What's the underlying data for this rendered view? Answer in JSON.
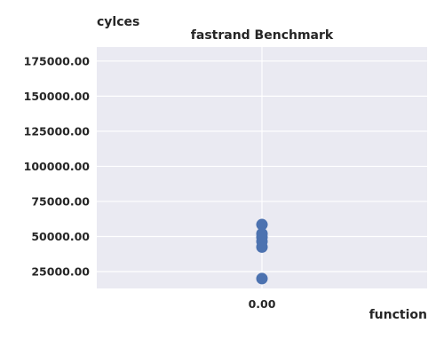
{
  "chart_data": {
    "type": "scatter",
    "title": "fastrand Benchmark",
    "xlabel": "function",
    "ylabel": "cylces",
    "x_ticks": [
      "0.00"
    ],
    "y_ticks": [
      "25000.00",
      "50000.00",
      "75000.00",
      "100000.00",
      "125000.00",
      "150000.00",
      "175000.00"
    ],
    "xlim": [
      -0.05,
      0.05
    ],
    "ylim": [
      13000,
      185000
    ],
    "grid": true,
    "series": [
      {
        "x": [
          0,
          0,
          0,
          0,
          0,
          0
        ],
        "y": [
          20000,
          42500,
          46500,
          49500,
          52000,
          58500
        ],
        "color": "#4c72b0"
      }
    ]
  }
}
